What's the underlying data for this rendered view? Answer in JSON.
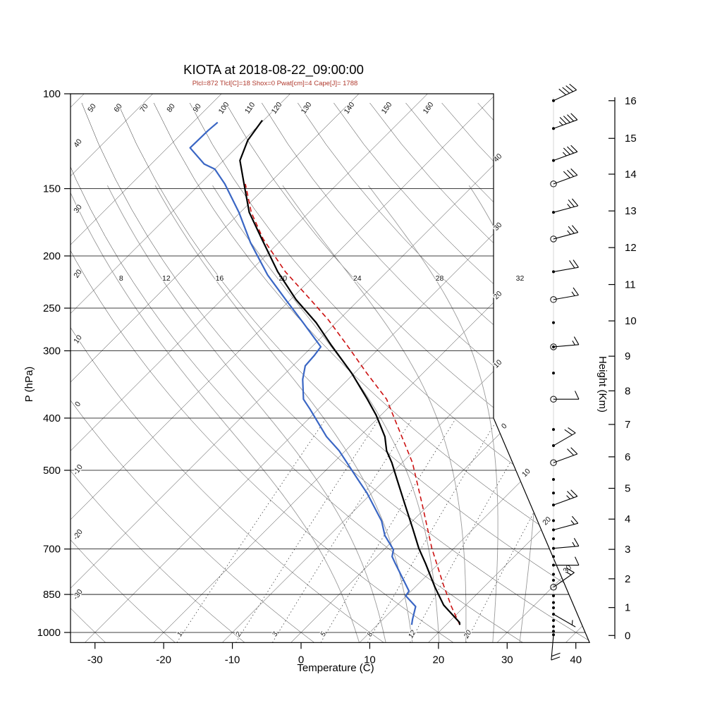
{
  "chart_data": {
    "type": "skewt_log_p",
    "title": "KIOTA at 2018-08-22_09:00:00",
    "subtitle": "Plcl=872 Tlcl[C]=18 Shox=0 Pwat[cm]=4 Cape[J]= 1788",
    "xlabel": "Temperature (C)",
    "ylabel": "P (hPa)",
    "y2label": "Height (Km)",
    "indices": {
      "Plcl": 872,
      "Tlcl_C": 18,
      "Shox": 0,
      "Pwat_cm": 4,
      "Cape_J": 1788
    },
    "pressure_ticks_hPa": [
      100,
      150,
      200,
      250,
      300,
      400,
      500,
      700,
      850,
      1000
    ],
    "temperature_ticks_C": [
      -30,
      -20,
      -10,
      0,
      10,
      20,
      30,
      40
    ],
    "height_ticks_km": [
      0,
      1,
      2,
      3,
      4,
      5,
      6,
      7,
      8,
      9,
      10,
      11,
      12,
      13,
      14,
      15,
      16
    ],
    "height_pressure_map": [
      [
        0,
        1013
      ],
      [
        1,
        899
      ],
      [
        2,
        795
      ],
      [
        3,
        701
      ],
      [
        4,
        616
      ],
      [
        5,
        540
      ],
      [
        6,
        472
      ],
      [
        7,
        411
      ],
      [
        8,
        356
      ],
      [
        9,
        307
      ],
      [
        10,
        264
      ],
      [
        11,
        226
      ],
      [
        12,
        193
      ],
      [
        13,
        165
      ],
      [
        14,
        141
      ],
      [
        15,
        121
      ],
      [
        16,
        103
      ]
    ],
    "isotherms_C": {
      "min": -120,
      "max": 40,
      "step": 10
    },
    "isotherm_right_edge_labels_C": [
      -40,
      -30,
      -20,
      -10
    ],
    "isotherm_diagonal_edge_labels_C": [
      0,
      10,
      20,
      30
    ],
    "dry_adiabats_C": {
      "min": -30,
      "max": 160,
      "step": 10
    },
    "dry_adiabat_top_labels": [
      50,
      60,
      70,
      80,
      90,
      100,
      110,
      120,
      130,
      140,
      150,
      160
    ],
    "dry_adiabat_left_labels": [
      40,
      30,
      20,
      10,
      0,
      -10,
      -20,
      -30
    ],
    "moist_adiabats_C": [
      8,
      12,
      16,
      20,
      24,
      28,
      32
    ],
    "mixing_ratios_g_kg": [
      1,
      2,
      3,
      5,
      8,
      12,
      20
    ],
    "temperature_profile_p_T": [
      [
        968,
        22.0
      ],
      [
        958,
        21.6
      ],
      [
        890,
        16.8
      ],
      [
        824,
        12.9
      ],
      [
        745,
        8.1
      ],
      [
        698,
        4.9
      ],
      [
        641,
        1.1
      ],
      [
        580,
        -3.4
      ],
      [
        520,
        -8.3
      ],
      [
        484,
        -11.5
      ],
      [
        460,
        -14.0
      ],
      [
        433,
        -16.3
      ],
      [
        395,
        -20.7
      ],
      [
        369,
        -24.3
      ],
      [
        330,
        -30.4
      ],
      [
        293,
        -37.4
      ],
      [
        266,
        -42.9
      ],
      [
        241,
        -49.2
      ],
      [
        214,
        -55.9
      ],
      [
        186,
        -63.0
      ],
      [
        166,
        -68.7
      ],
      [
        147,
        -73.6
      ],
      [
        133,
        -77.6
      ],
      [
        122,
        -79.4
      ],
      [
        112,
        -80.2
      ]
    ],
    "dewpoint_profile_p_T": [
      [
        968,
        15.0
      ],
      [
        945,
        14.3
      ],
      [
        895,
        12.9
      ],
      [
        855,
        9.9
      ],
      [
        838,
        9.7
      ],
      [
        745,
        3.7
      ],
      [
        723,
        2.2
      ],
      [
        702,
        1.4
      ],
      [
        661,
        -1.9
      ],
      [
        621,
        -4.5
      ],
      [
        551,
        -10.7
      ],
      [
        520,
        -14.0
      ],
      [
        460,
        -20.9
      ],
      [
        433,
        -24.8
      ],
      [
        385,
        -31.2
      ],
      [
        369,
        -33.6
      ],
      [
        339,
        -36.6
      ],
      [
        320,
        -38.2
      ],
      [
        306,
        -38.4
      ],
      [
        295,
        -38.7
      ],
      [
        266,
        -44.8
      ],
      [
        241,
        -50.7
      ],
      [
        217,
        -56.9
      ],
      [
        189,
        -64.1
      ],
      [
        166,
        -70.2
      ],
      [
        147,
        -76.4
      ],
      [
        138,
        -80.0
      ],
      [
        135,
        -82.3
      ],
      [
        126,
        -86.7
      ],
      [
        117,
        -86.6
      ],
      [
        113,
        -86.4
      ]
    ],
    "parcel_profile_p_T": [
      [
        968,
        22.0
      ],
      [
        895,
        18.1
      ],
      [
        816,
        13.8
      ],
      [
        698,
        6.8
      ],
      [
        587,
        -0.4
      ],
      [
        484,
        -8.5
      ],
      [
        420,
        -15.3
      ],
      [
        369,
        -21.5
      ],
      [
        330,
        -28.2
      ],
      [
        293,
        -35.1
      ],
      [
        263,
        -41.5
      ],
      [
        241,
        -47.1
      ],
      [
        214,
        -54.8
      ],
      [
        186,
        -62.8
      ],
      [
        166,
        -68.4
      ],
      [
        147,
        -73.4
      ]
    ],
    "winds": [
      {
        "p": 103,
        "spd": 40,
        "dir": 65,
        "base": "dot"
      },
      {
        "p": 116,
        "spd": 45,
        "dir": 70,
        "base": "dot"
      },
      {
        "p": 133,
        "spd": 35,
        "dir": 70,
        "base": "dot"
      },
      {
        "p": 147,
        "spd": 30,
        "dir": 70,
        "base": "circle"
      },
      {
        "p": 166,
        "spd": 25,
        "dir": 75,
        "base": "dot"
      },
      {
        "p": 186,
        "spd": 25,
        "dir": 75,
        "base": "circle"
      },
      {
        "p": 214,
        "spd": 20,
        "dir": 80,
        "base": "dot"
      },
      {
        "p": 241,
        "spd": 15,
        "dir": 80,
        "base": "circle"
      },
      {
        "p": 266,
        "spd": 0,
        "dir": 0,
        "base": "dot"
      },
      {
        "p": 295,
        "spd": 15,
        "dir": 85,
        "base": "circledot"
      },
      {
        "p": 330,
        "spd": 0,
        "dir": 0,
        "base": "dot"
      },
      {
        "p": 369,
        "spd": 10,
        "dir": 90,
        "base": "circle"
      },
      {
        "p": 420,
        "spd": 0,
        "dir": 0,
        "base": "dot"
      },
      {
        "p": 450,
        "spd": 20,
        "dir": 60,
        "base": "dot"
      },
      {
        "p": 484,
        "spd": 20,
        "dir": 70,
        "base": "circle"
      },
      {
        "p": 520,
        "spd": 0,
        "dir": 0,
        "base": "dot"
      },
      {
        "p": 551,
        "spd": 0,
        "dir": 0,
        "base": "dot"
      },
      {
        "p": 580,
        "spd": 25,
        "dir": 70,
        "base": "dot"
      },
      {
        "p": 620,
        "spd": 0,
        "dir": 0,
        "base": "dot"
      },
      {
        "p": 645,
        "spd": 15,
        "dir": 75,
        "base": "dot"
      },
      {
        "p": 670,
        "spd": 0,
        "dir": 0,
        "base": "dot"
      },
      {
        "p": 698,
        "spd": 15,
        "dir": 85,
        "base": "dot"
      },
      {
        "p": 723,
        "spd": 0,
        "dir": 0,
        "base": "dot"
      },
      {
        "p": 750,
        "spd": 10,
        "dir": 90,
        "base": "dot"
      },
      {
        "p": 780,
        "spd": 0,
        "dir": 0,
        "base": "dot"
      },
      {
        "p": 800,
        "spd": 0,
        "dir": 0,
        "base": "dot"
      },
      {
        "p": 824,
        "spd": 15,
        "dir": 55,
        "base": "circle"
      },
      {
        "p": 855,
        "spd": 0,
        "dir": 0,
        "base": "dot"
      },
      {
        "p": 880,
        "spd": 0,
        "dir": 0,
        "base": "dot"
      },
      {
        "p": 900,
        "spd": 0,
        "dir": 0,
        "base": "dot"
      },
      {
        "p": 925,
        "spd": 5,
        "dir": 120,
        "base": "dot"
      },
      {
        "p": 950,
        "spd": 0,
        "dir": 0,
        "base": "dot"
      },
      {
        "p": 975,
        "spd": 0,
        "dir": 0,
        "base": "dot"
      },
      {
        "p": 995,
        "spd": 0,
        "dir": 0,
        "base": "dot"
      },
      {
        "p": 1010,
        "spd": 20,
        "dir": 185,
        "base": "dot"
      }
    ],
    "colors": {
      "temperature": "#000000",
      "dewpoint": "#3a66c4",
      "parcel": "#cc1111",
      "subtitle": "#b03a2e",
      "moist_adiabat": "#9a9a9a",
      "grid": "#000000"
    }
  }
}
